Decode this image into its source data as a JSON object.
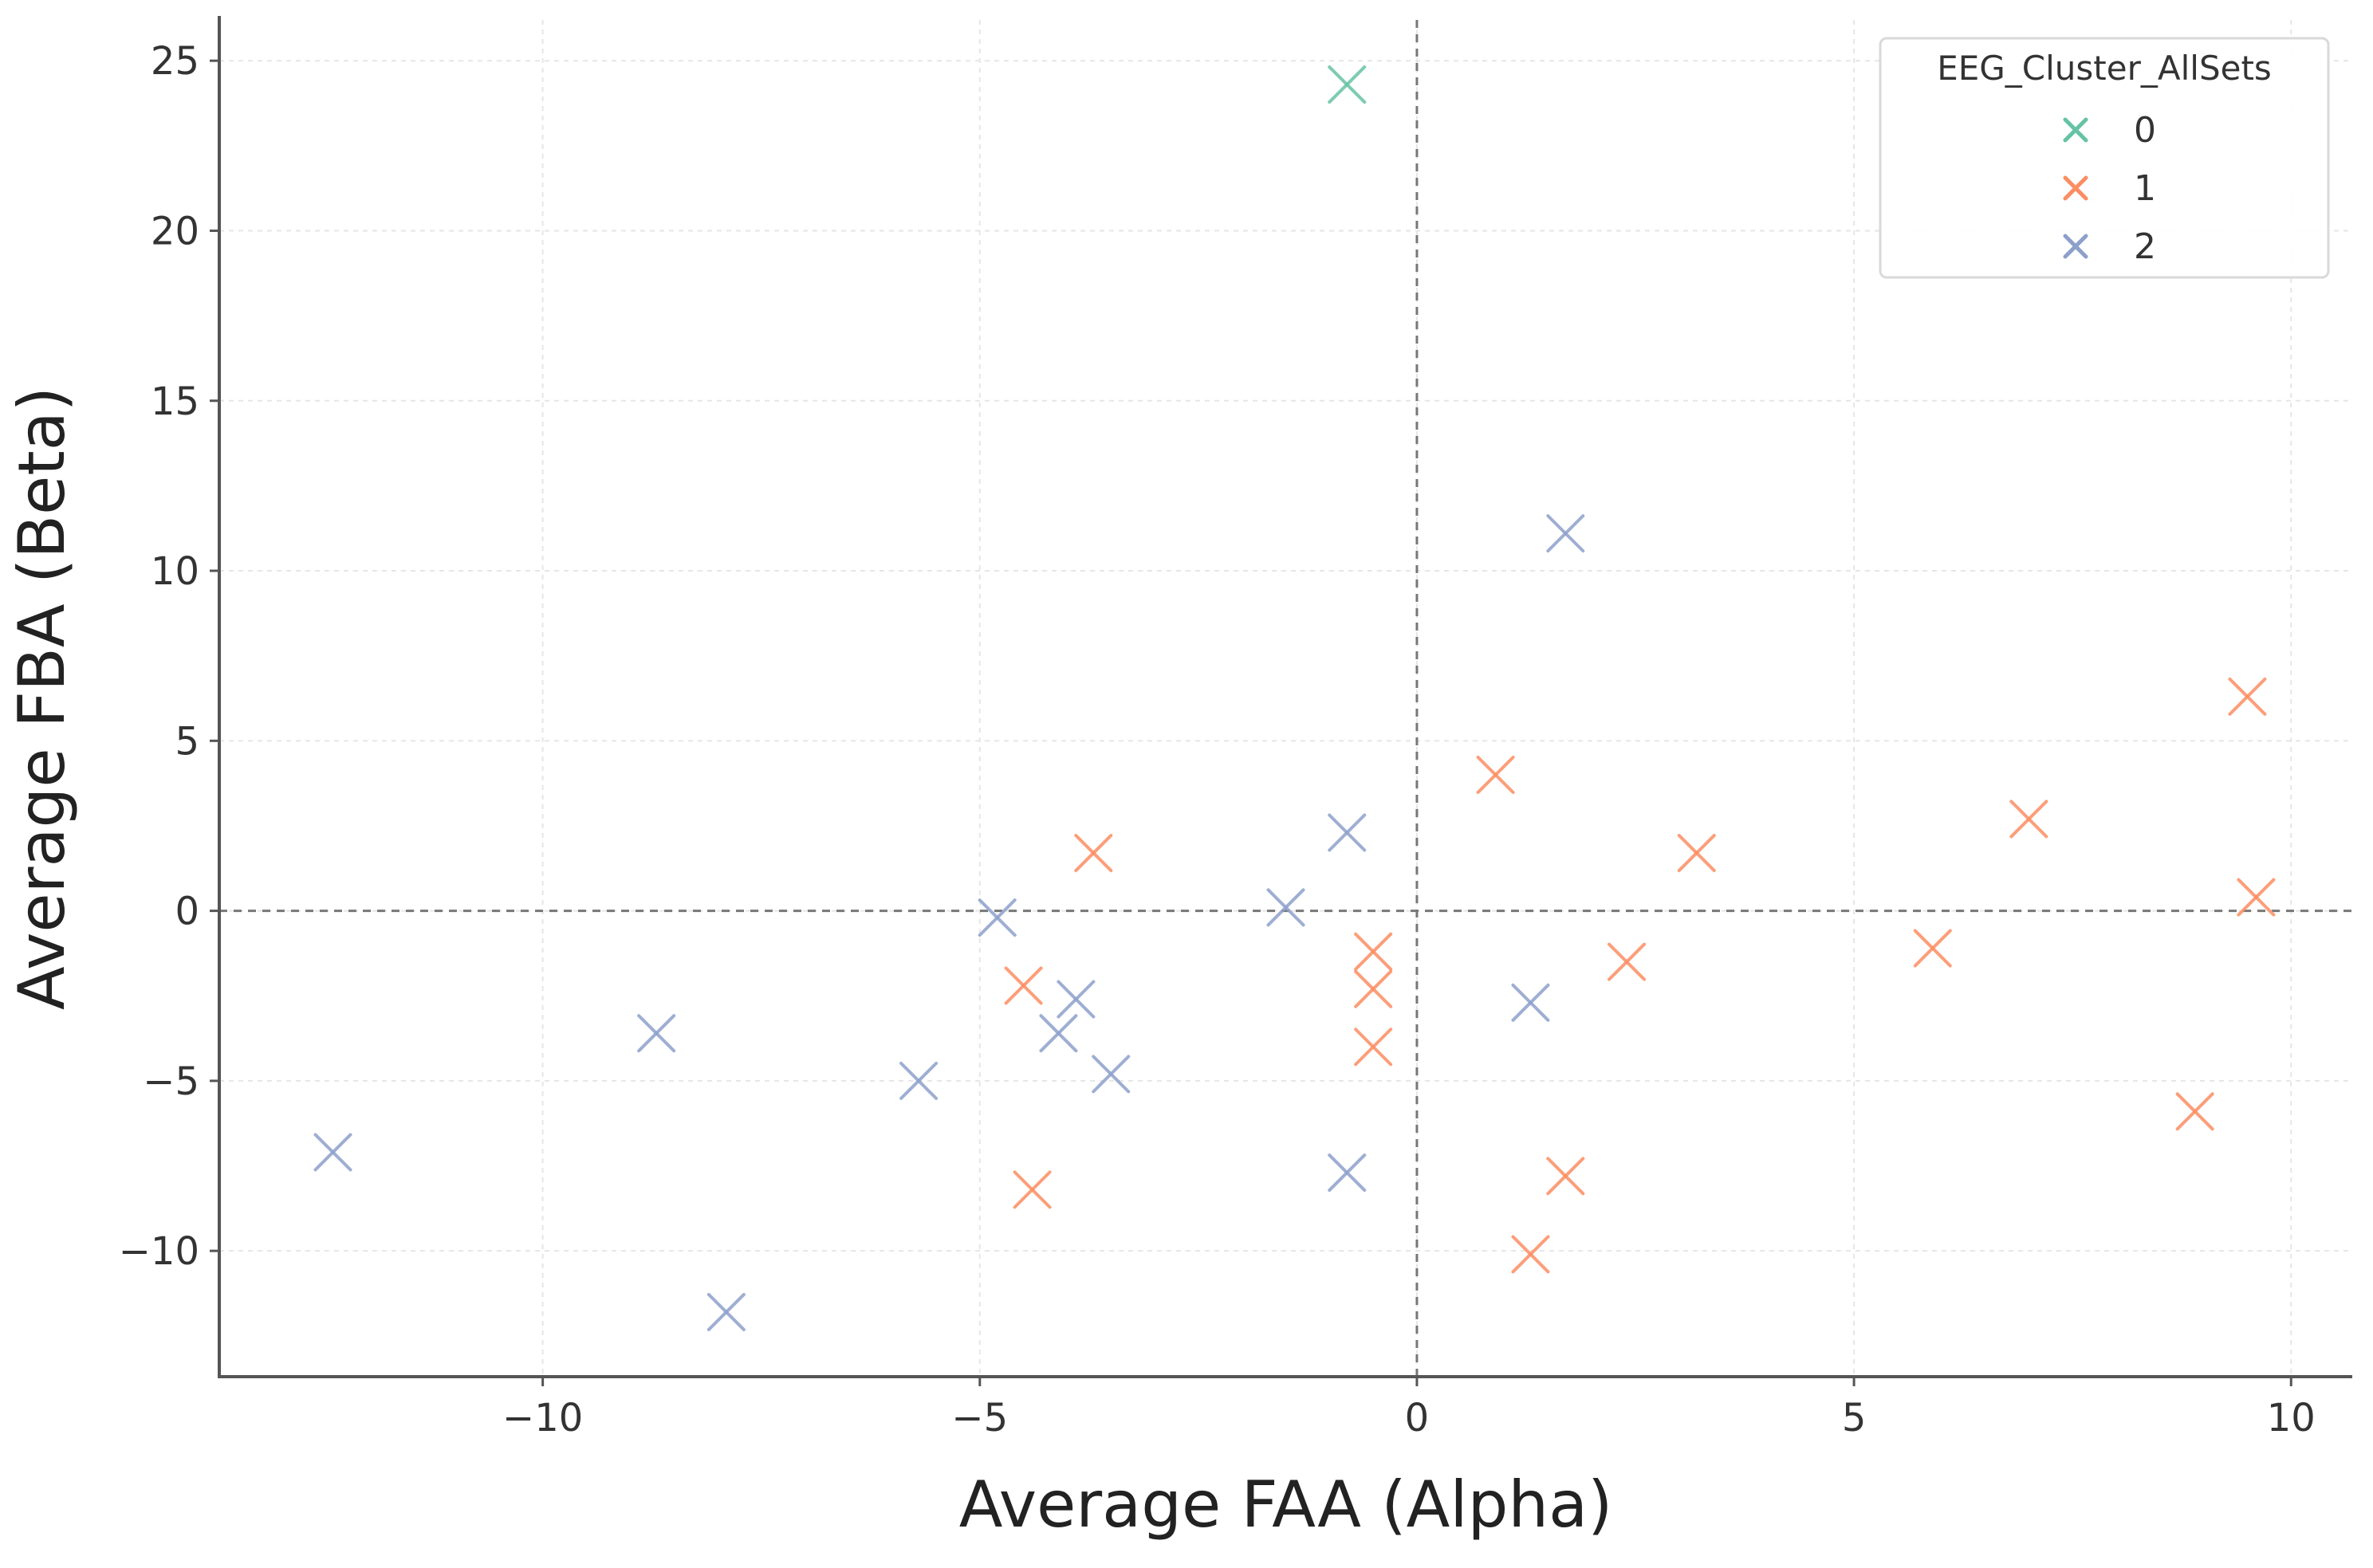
{
  "chart_data": {
    "type": "scatter",
    "title": "",
    "xlabel": "Average FAA (Alpha)",
    "ylabel": "Average FBA (Beta)",
    "xlim": [
      -13.7,
      10.7
    ],
    "ylim": [
      -13.7,
      26.2
    ],
    "xticks": [
      -10,
      -5,
      0,
      5,
      10
    ],
    "xtick_labels": [
      "−10",
      "−5",
      "0",
      "5",
      "10"
    ],
    "yticks": [
      -10,
      -5,
      0,
      5,
      10,
      15,
      20,
      25
    ],
    "ytick_labels": [
      "−10",
      "−5",
      "0",
      "5",
      "10",
      "15",
      "20",
      "25"
    ],
    "grid": true,
    "reference_lines": {
      "x": 0,
      "y": 0
    },
    "marker": "x",
    "legend": {
      "title": "EEG_Cluster_AllSets",
      "location": "top-right",
      "entries": [
        "0",
        "1",
        "2"
      ]
    },
    "series": [
      {
        "name": "0",
        "color": "#66c2a5",
        "points": [
          {
            "x": -0.8,
            "y": 24.3
          }
        ]
      },
      {
        "name": "1",
        "color": "#fc8d62",
        "points": [
          {
            "x": -3.7,
            "y": 1.7
          },
          {
            "x": -4.5,
            "y": -2.2
          },
          {
            "x": -4.4,
            "y": -8.2
          },
          {
            "x": -0.5,
            "y": -1.2
          },
          {
            "x": -0.5,
            "y": -2.3
          },
          {
            "x": -0.5,
            "y": -4.0
          },
          {
            "x": 0.9,
            "y": 4.0
          },
          {
            "x": 1.3,
            "y": -10.1
          },
          {
            "x": 1.7,
            "y": -7.8
          },
          {
            "x": 2.4,
            "y": -1.5
          },
          {
            "x": 3.2,
            "y": 1.7
          },
          {
            "x": 5.9,
            "y": -1.1
          },
          {
            "x": 7.0,
            "y": 2.7
          },
          {
            "x": 8.9,
            "y": -5.9
          },
          {
            "x": 9.5,
            "y": 6.3
          },
          {
            "x": 9.6,
            "y": 0.4
          }
        ]
      },
      {
        "name": "2",
        "color": "#8da0cb",
        "points": [
          {
            "x": -12.4,
            "y": -7.1
          },
          {
            "x": -8.7,
            "y": -3.6
          },
          {
            "x": -7.9,
            "y": -11.8
          },
          {
            "x": -5.7,
            "y": -5.0
          },
          {
            "x": -4.8,
            "y": -0.2
          },
          {
            "x": -3.9,
            "y": -2.6
          },
          {
            "x": -4.1,
            "y": -3.6
          },
          {
            "x": -3.5,
            "y": -4.8
          },
          {
            "x": -1.5,
            "y": 0.1
          },
          {
            "x": -0.8,
            "y": 2.3
          },
          {
            "x": -0.8,
            "y": -7.7
          },
          {
            "x": 1.3,
            "y": -2.7
          },
          {
            "x": 1.7,
            "y": 11.1
          }
        ]
      }
    ]
  }
}
